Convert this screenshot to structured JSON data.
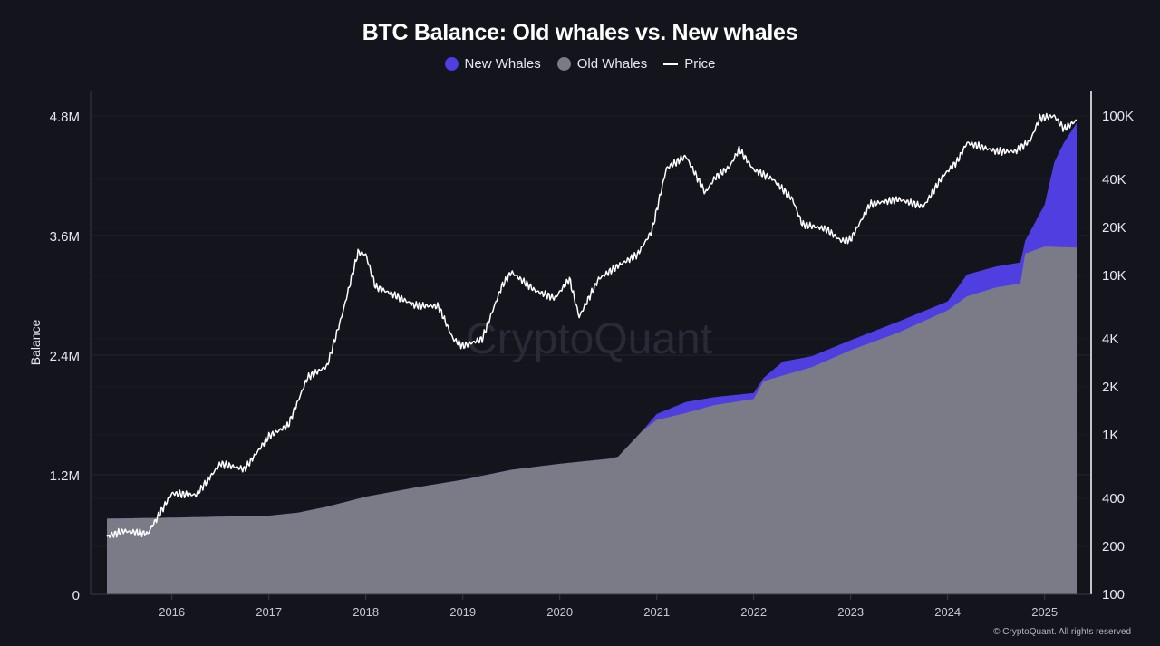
{
  "chart_data": {
    "type": "area",
    "title": "BTC Balance: Old whales vs. New whales",
    "ylabel": "Balance",
    "ylim": [
      0,
      4800000
    ],
    "y_right_scale": "log",
    "y_right_ticks": [
      "100",
      "200",
      "400",
      "1K",
      "2K",
      "4K",
      "10K",
      "20K",
      "40K",
      "100K"
    ],
    "y_right_values": [
      100,
      200,
      400,
      1000,
      2000,
      4000,
      10000,
      20000,
      40000,
      100000
    ],
    "y_ticks": [
      "0",
      "1.2M",
      "2.4M",
      "3.6M",
      "4.8M"
    ],
    "y_values": [
      0,
      1200000,
      2400000,
      3600000,
      4800000
    ],
    "x_ticks": [
      "2016",
      "2017",
      "2018",
      "2019",
      "2020",
      "2021",
      "2022",
      "2023",
      "2024",
      "2025"
    ],
    "x_range": [
      2015.33,
      2025.33
    ],
    "grid": true,
    "legend_position": "top-center",
    "watermark": "CryptoQuant",
    "series": [
      {
        "name": "Old Whales",
        "color": "#7b7b88",
        "x": [
          2015.33,
          2016.0,
          2016.5,
          2017.0,
          2017.3,
          2017.6,
          2018.0,
          2018.5,
          2019.0,
          2019.5,
          2020.0,
          2020.5,
          2020.6,
          2020.85,
          2021.0,
          2021.3,
          2021.6,
          2022.0,
          2022.1,
          2022.6,
          2023.0,
          2023.5,
          2024.0,
          2024.2,
          2024.5,
          2024.75,
          2024.8,
          2025.0,
          2025.33
        ],
        "values": [
          760000,
          770000,
          780000,
          790000,
          820000,
          880000,
          980000,
          1070000,
          1150000,
          1250000,
          1310000,
          1360000,
          1380000,
          1640000,
          1750000,
          1820000,
          1900000,
          1960000,
          2140000,
          2280000,
          2450000,
          2630000,
          2850000,
          2990000,
          3080000,
          3120000,
          3420000,
          3490000,
          3480000
        ]
      },
      {
        "name": "New Whales",
        "color": "#4f3ee0",
        "x": [
          2015.33,
          2020.85,
          2021.0,
          2021.3,
          2021.6,
          2022.0,
          2022.1,
          2022.3,
          2022.6,
          2023.0,
          2023.5,
          2024.0,
          2024.2,
          2024.5,
          2024.75,
          2024.8,
          2025.0,
          2025.1,
          2025.2,
          2025.33
        ],
        "values": [
          0,
          0,
          60000,
          110000,
          80000,
          60000,
          30000,
          140000,
          110000,
          100000,
          110000,
          90000,
          220000,
          210000,
          210000,
          130000,
          420000,
          850000,
          1050000,
          1250000
        ]
      },
      {
        "name": "Price",
        "color": "#ffffff",
        "axis": "right",
        "x": [
          2015.33,
          2015.5,
          2015.75,
          2016.0,
          2016.25,
          2016.5,
          2016.75,
          2017.0,
          2017.2,
          2017.4,
          2017.6,
          2017.75,
          2017.92,
          2018.0,
          2018.1,
          2018.3,
          2018.5,
          2018.75,
          2018.9,
          2019.0,
          2019.2,
          2019.4,
          2019.5,
          2019.75,
          2019.95,
          2020.1,
          2020.2,
          2020.4,
          2020.6,
          2020.8,
          2020.95,
          2021.1,
          2021.3,
          2021.5,
          2021.6,
          2021.75,
          2021.85,
          2022.0,
          2022.2,
          2022.4,
          2022.5,
          2022.75,
          2022.9,
          2023.0,
          2023.2,
          2023.5,
          2023.75,
          2023.95,
          2024.1,
          2024.2,
          2024.5,
          2024.7,
          2024.85,
          2024.95,
          2025.1,
          2025.2,
          2025.33
        ],
        "values": [
          230,
          250,
          240,
          430,
          420,
          660,
          610,
          980,
          1150,
          2300,
          2700,
          5500,
          14000,
          13500,
          8500,
          7500,
          6500,
          6400,
          4000,
          3600,
          4000,
          8500,
          10500,
          8000,
          7200,
          9500,
          5500,
          9500,
          11500,
          13500,
          19000,
          47000,
          56000,
          33000,
          41000,
          48000,
          62000,
          46000,
          40000,
          30000,
          21000,
          19500,
          16500,
          16800,
          28000,
          30000,
          27000,
          42000,
          52000,
          68000,
          60000,
          60000,
          70000,
          97000,
          100000,
          83000,
          94000
        ]
      }
    ]
  },
  "legend": {
    "new_whales": "New Whales",
    "old_whales": "Old Whales",
    "price": "Price"
  },
  "footer": "© CryptoQuant. All rights reserved"
}
